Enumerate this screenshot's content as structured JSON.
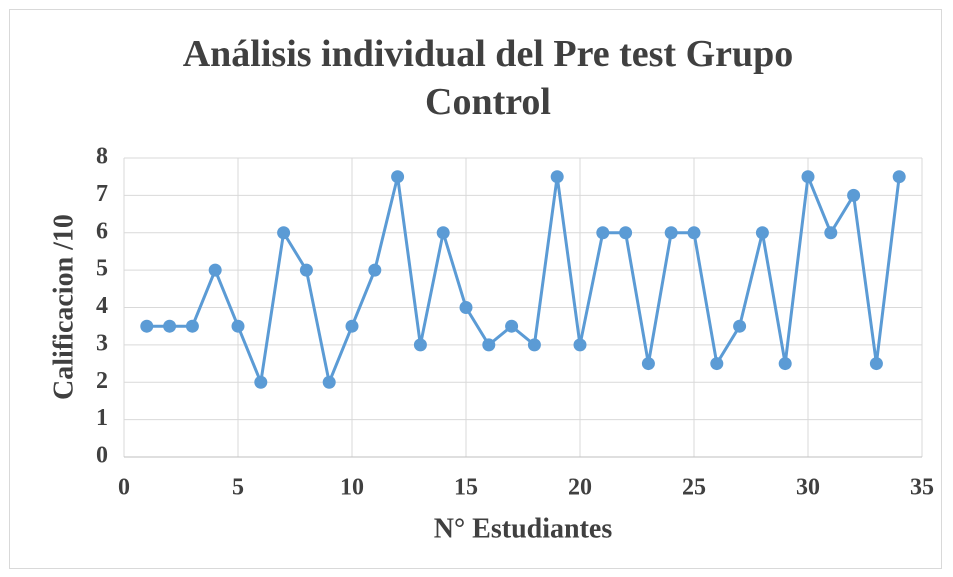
{
  "chart_data": {
    "type": "line",
    "title": "Análisis individual del Pre test Grupo Control",
    "x_label": "N° Estudiantes",
    "y_label": "Calificacion /10",
    "xlim": [
      0,
      35
    ],
    "xticks": [
      0,
      5,
      10,
      15,
      20,
      25,
      30,
      35
    ],
    "ylim": [
      0,
      8
    ],
    "yticks": [
      0,
      1,
      2,
      3,
      4,
      5,
      6,
      7,
      8
    ],
    "grid": true,
    "series": [
      {
        "color": "#5b9bd5",
        "x": [
          1,
          2,
          3,
          4,
          5,
          6,
          7,
          8,
          9,
          10,
          11,
          12,
          13,
          14,
          15,
          16,
          17,
          18,
          19,
          20,
          21,
          22,
          23,
          24,
          25,
          26,
          27,
          28,
          29,
          30,
          31,
          32,
          33,
          34
        ],
        "values": [
          3.5,
          3.5,
          3.5,
          5,
          3.5,
          2,
          6,
          5,
          2,
          3.5,
          5,
          7.5,
          3,
          6,
          4,
          3,
          3.5,
          3,
          7.5,
          3,
          6,
          6,
          2.5,
          6,
          6,
          2.5,
          3.5,
          6,
          2.5,
          7.5,
          6,
          7,
          2.5,
          7.5
        ]
      }
    ]
  }
}
